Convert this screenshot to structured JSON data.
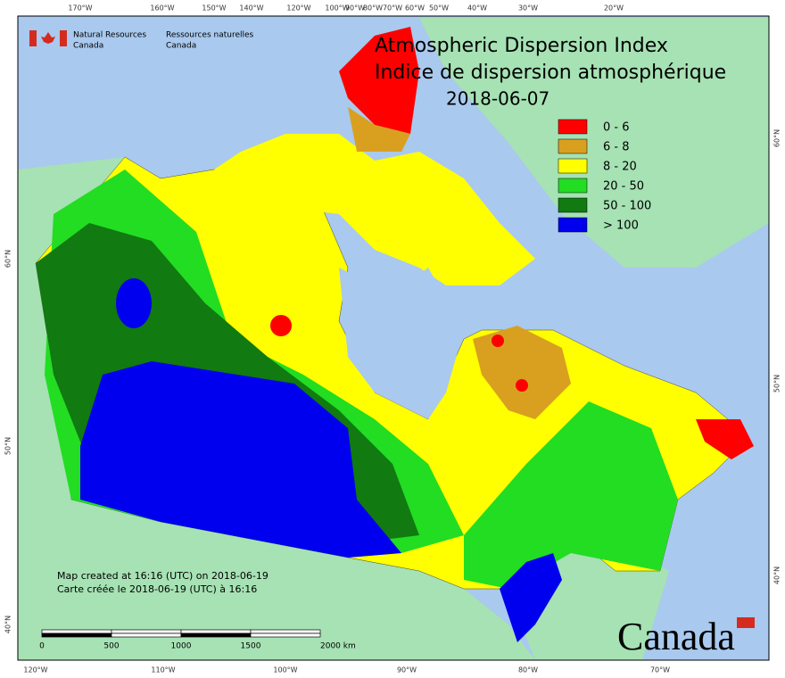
{
  "header": {
    "agency_en": [
      "Natural Resources",
      "Canada"
    ],
    "agency_fr": [
      "Ressources naturelles",
      "Canada"
    ]
  },
  "title": [
    "Atmospheric Dispersion Index",
    "Indice de dispersion atmosphérique",
    "2018-06-07"
  ],
  "legend": [
    {
      "label": "0 - 6",
      "color": "#ff0000"
    },
    {
      "label": "6 - 8",
      "color": "#d9a020"
    },
    {
      "label": "8 - 20",
      "color": "#ffff00"
    },
    {
      "label": "20 - 50",
      "color": "#22dd22"
    },
    {
      "label": "50 - 100",
      "color": "#117a11"
    },
    {
      "label": "> 100",
      "color": "#0000ee"
    }
  ],
  "graticule": {
    "top": [
      "170°W",
      "160°W",
      "150°W",
      "140°W",
      "120°W",
      "100°W",
      "90°W",
      "80°W",
      "70°W",
      "60°W",
      "50°W",
      "40°W",
      "30°W",
      "20°W"
    ],
    "bottom": [
      "120°W",
      "110°W",
      "100°W",
      "90°W",
      "80°W",
      "70°W"
    ],
    "left": [
      "60°N",
      "50°N",
      "40°N"
    ],
    "right": [
      "60°N",
      "50°N",
      "40°N"
    ]
  },
  "credits": [
    "Map created at 16:16 (UTC) on 2018-06-19",
    "Carte créée le 2018-06-19 (UTC) à 16:16"
  ],
  "scale_bar": [
    "0",
    "500",
    "1000",
    "1500",
    "2000 km"
  ],
  "wordmark": "Canada"
}
